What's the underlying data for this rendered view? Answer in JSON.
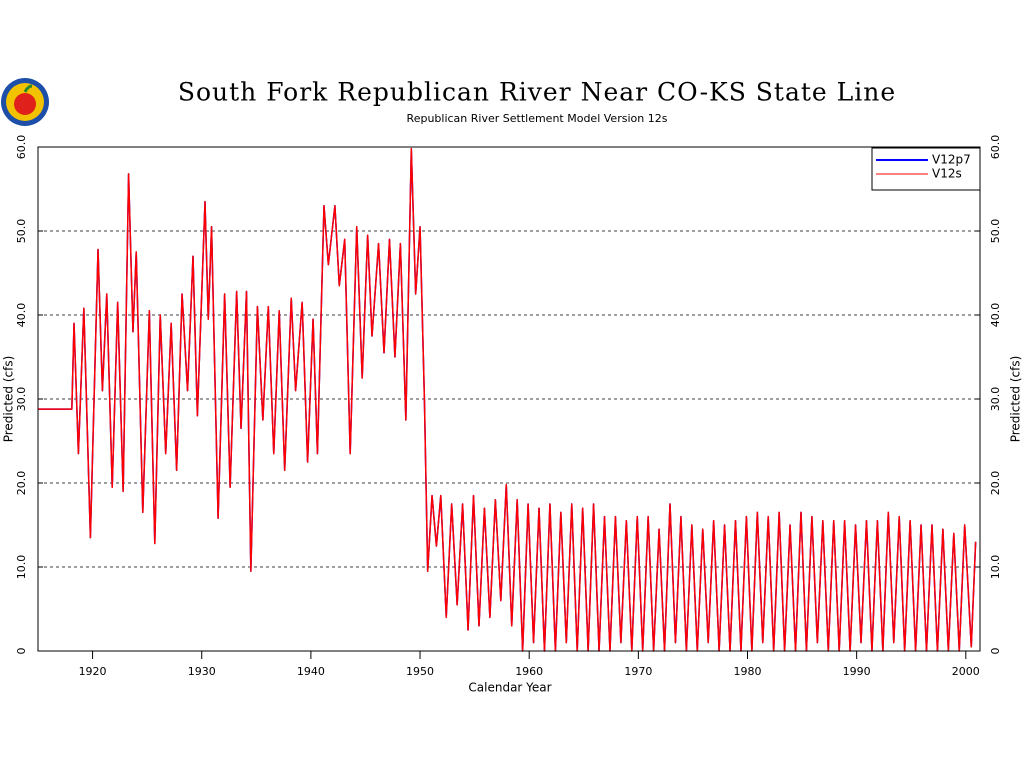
{
  "chart_data": {
    "type": "line",
    "title": "South Fork Republican River Near CO-KS State Line",
    "subtitle": "Republican River Settlement Model Version 12s",
    "ylabel": "Predicted (cfs)",
    "y2label": "Predicted (cfs)",
    "xlabel": "Calendar Year",
    "xlim": [
      1915,
      2001.3
    ],
    "xticks": [
      1920,
      1930,
      1940,
      1950,
      1960,
      1970,
      1980,
      1990,
      2000
    ],
    "ylim": [
      0,
      60
    ],
    "yticks": [
      0,
      {
        "value": 10,
        "label": "10.0"
      },
      {
        "value": 20,
        "label": "20.0"
      },
      {
        "value": 30,
        "label": "30.0"
      },
      {
        "value": 40,
        "label": "40.0"
      },
      {
        "value": 50,
        "label": "50.0"
      },
      {
        "value": 60,
        "label": "60.0"
      }
    ],
    "grid": true,
    "legend": "upper right",
    "x": [
      1915,
      1918.1,
      1918.3,
      1918.7,
      1919.2,
      1919.8,
      1920.5,
      1920.9,
      1921.3,
      1921.8,
      1922.3,
      1922.8,
      1923.3,
      1923.7,
      1924.0,
      1924.6,
      1925.2,
      1925.7,
      1926.2,
      1926.7,
      1927.2,
      1927.7,
      1928.2,
      1928.7,
      1929.2,
      1929.6,
      1930.3,
      1930.6,
      1930.9,
      1931.5,
      1932.1,
      1932.6,
      1933.2,
      1933.6,
      1934.1,
      1934.5,
      1935.1,
      1935.6,
      1936.1,
      1936.6,
      1937.1,
      1937.6,
      1938.2,
      1938.6,
      1939.2,
      1939.7,
      1940.2,
      1940.6,
      1941.2,
      1941.6,
      1942.2,
      1942.6,
      1943.1,
      1943.6,
      1944.2,
      1944.7,
      1945.2,
      1945.6,
      1946.2,
      1946.7,
      1947.2,
      1947.7,
      1948.2,
      1948.7,
      1949.2,
      1949.6,
      1950.0,
      1950.4,
      1950.7,
      1951.1,
      1951.5,
      1951.9,
      1952.4,
      1952.9,
      1953.4,
      1953.9,
      1954.4,
      1954.9,
      1955.4,
      1955.9,
      1956.4,
      1956.9,
      1957.4,
      1957.9,
      1958.4,
      1958.9,
      1959.4,
      1959.9,
      1960.4,
      1960.9,
      1961.4,
      1961.9,
      1962.4,
      1962.9,
      1963.4,
      1963.9,
      1964.4,
      1964.9,
      1965.4,
      1965.9,
      1966.4,
      1966.9,
      1967.4,
      1967.9,
      1968.4,
      1968.9,
      1969.4,
      1969.9,
      1970.4,
      1970.9,
      1971.4,
      1971.9,
      1972.4,
      1972.9,
      1973.4,
      1973.9,
      1974.4,
      1974.9,
      1975.4,
      1975.9,
      1976.4,
      1976.9,
      1977.4,
      1977.9,
      1978.4,
      1978.9,
      1979.4,
      1979.9,
      1980.4,
      1980.9,
      1981.4,
      1981.9,
      1982.4,
      1982.9,
      1983.4,
      1983.9,
      1984.4,
      1984.9,
      1985.4,
      1985.9,
      1986.4,
      1986.9,
      1987.4,
      1987.9,
      1988.4,
      1988.9,
      1989.4,
      1989.9,
      1990.4,
      1990.9,
      1991.4,
      1991.9,
      1992.4,
      1992.9,
      1993.4,
      1993.9,
      1994.4,
      1994.9,
      1995.4,
      1995.9,
      1996.4,
      1996.9,
      1997.4,
      1997.9,
      1998.4,
      1998.9,
      1999.4,
      1999.9,
      2000.5,
      2000.9
    ],
    "series": [
      {
        "name": "V12p7",
        "color": "#0000ff",
        "values": [
          28.8,
          28.8,
          39,
          23.5,
          40.8,
          13.5,
          47.8,
          31,
          42.5,
          19.5,
          41.5,
          19,
          56.8,
          38,
          47.5,
          16.5,
          40.5,
          12.8,
          40,
          23.5,
          39,
          21.5,
          42.5,
          31,
          47,
          28,
          53.5,
          39.5,
          50.5,
          15.8,
          42.5,
          19.5,
          42.8,
          26.5,
          42.8,
          9.5,
          41,
          27.5,
          41,
          23.5,
          40.5,
          21.5,
          42,
          31,
          41.5,
          22.5,
          39.5,
          23.5,
          53,
          46,
          53,
          43.5,
          49,
          23.5,
          50.5,
          32.5,
          49.5,
          37.5,
          48.5,
          35.5,
          49,
          35,
          48.5,
          27.5,
          59.8,
          42.5,
          50.5,
          30,
          9.5,
          18.5,
          12.5,
          18.5,
          4,
          17.5,
          5.5,
          17.5,
          2.5,
          18.5,
          3,
          17,
          4,
          18,
          6,
          19.8,
          3,
          18,
          0,
          17.5,
          1,
          17,
          0,
          17.5,
          0,
          16.5,
          1,
          17.5,
          0,
          17,
          0,
          17.5,
          0,
          16,
          0,
          16,
          1,
          15.5,
          0,
          16,
          0,
          16,
          0,
          14.5,
          0,
          17.5,
          1,
          16,
          0,
          15,
          0,
          14.5,
          1,
          15.5,
          0,
          15,
          0,
          15.5,
          0,
          16,
          0,
          16.5,
          1,
          16,
          0,
          16.5,
          0,
          15,
          0,
          16.5,
          0,
          16,
          1,
          15.5,
          0,
          15.5,
          0,
          15.5,
          0,
          15,
          1,
          15.5,
          0,
          15.5,
          0,
          16.5,
          1,
          16,
          0,
          15.5,
          0,
          15,
          0,
          15,
          0,
          14.5,
          0,
          14,
          0,
          15,
          0.5,
          13
        ]
      },
      {
        "name": "V12s",
        "color": "#ff0000",
        "values": [
          28.8,
          28.8,
          39,
          23.5,
          40.8,
          13.5,
          47.8,
          31,
          42.5,
          19.5,
          41.5,
          19,
          56.8,
          38,
          47.5,
          16.5,
          40.5,
          12.8,
          40,
          23.5,
          39,
          21.5,
          42.5,
          31,
          47,
          28,
          53.5,
          39.5,
          50.5,
          15.8,
          42.5,
          19.5,
          42.8,
          26.5,
          42.8,
          9.5,
          41,
          27.5,
          41,
          23.5,
          40.5,
          21.5,
          42,
          31,
          41.5,
          22.5,
          39.5,
          23.5,
          53,
          46,
          53,
          43.5,
          49,
          23.5,
          50.5,
          32.5,
          49.5,
          37.5,
          48.5,
          35.5,
          49,
          35,
          48.5,
          27.5,
          59.8,
          42.5,
          50.5,
          30,
          9.5,
          18.5,
          12.5,
          18.5,
          4,
          17.5,
          5.5,
          17.5,
          2.5,
          18.5,
          3,
          17,
          4,
          18,
          6,
          19.8,
          3,
          18,
          0,
          17.5,
          1,
          17,
          0,
          17.5,
          0,
          16.5,
          1,
          17.5,
          0,
          17,
          0,
          17.5,
          0,
          16,
          0,
          16,
          1,
          15.5,
          0,
          16,
          0,
          16,
          0,
          14.5,
          0,
          17.5,
          1,
          16,
          0,
          15,
          0,
          14.5,
          1,
          15.5,
          0,
          15,
          0,
          15.5,
          0,
          16,
          0,
          16.5,
          1,
          16,
          0,
          16.5,
          0,
          15,
          0,
          16.5,
          0,
          16,
          1,
          15.5,
          0,
          15.5,
          0,
          15.5,
          0,
          15,
          1,
          15.5,
          0,
          15.5,
          0,
          16.5,
          1,
          16,
          0,
          15.5,
          0,
          15,
          0,
          15,
          0,
          14.5,
          0,
          14,
          0,
          15,
          0.5,
          13
        ]
      }
    ]
  }
}
